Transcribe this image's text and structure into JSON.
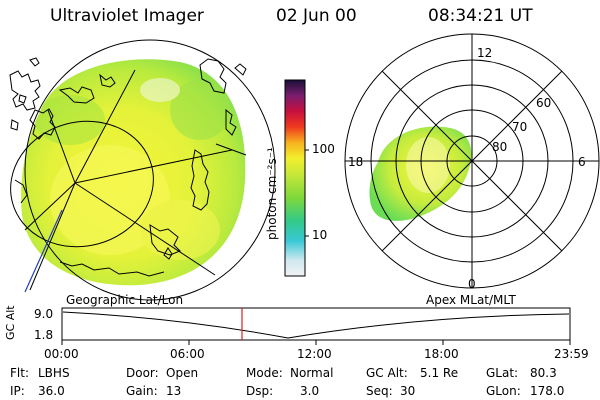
{
  "header": {
    "instrument": "Ultraviolet Imager",
    "date": "02 Jun 00",
    "time": "08:34:21 UT"
  },
  "colorbar": {
    "unit_label": "photon cm⁻²s⁻¹",
    "ticks": [
      "100",
      "10"
    ]
  },
  "polar_plot": {
    "mlt_labels": [
      "12",
      "18",
      "6",
      "0"
    ],
    "lat_labels": [
      "60",
      "70",
      "80"
    ]
  },
  "altitude_strip": {
    "ylabel": "GC Alt",
    "yticks": [
      "9.0",
      "1.8"
    ],
    "left_caption": "Geographic Lat/Lon",
    "right_caption": "Apex MLat/MLT",
    "time_ticks": [
      "00:00",
      "06:00",
      "12:00",
      "18:00",
      "23:59"
    ]
  },
  "info": {
    "row1": [
      {
        "label": "Flt:",
        "value": "LBHS"
      },
      {
        "label": "Door:",
        "value": "Open"
      },
      {
        "label": "Mode:",
        "value": "Normal"
      },
      {
        "label": "GC Alt:",
        "value": "5.1 Re"
      },
      {
        "label": "GLat:",
        "value": "80.3"
      }
    ],
    "row2": [
      {
        "label": "IP:",
        "value": "36.0"
      },
      {
        "label": "Gain:",
        "value": "13"
      },
      {
        "label": "Dsp:",
        "value": "3.0"
      },
      {
        "label": "Seq:",
        "value": "30"
      },
      {
        "label": "GLon:",
        "value": "178.0"
      }
    ]
  }
}
